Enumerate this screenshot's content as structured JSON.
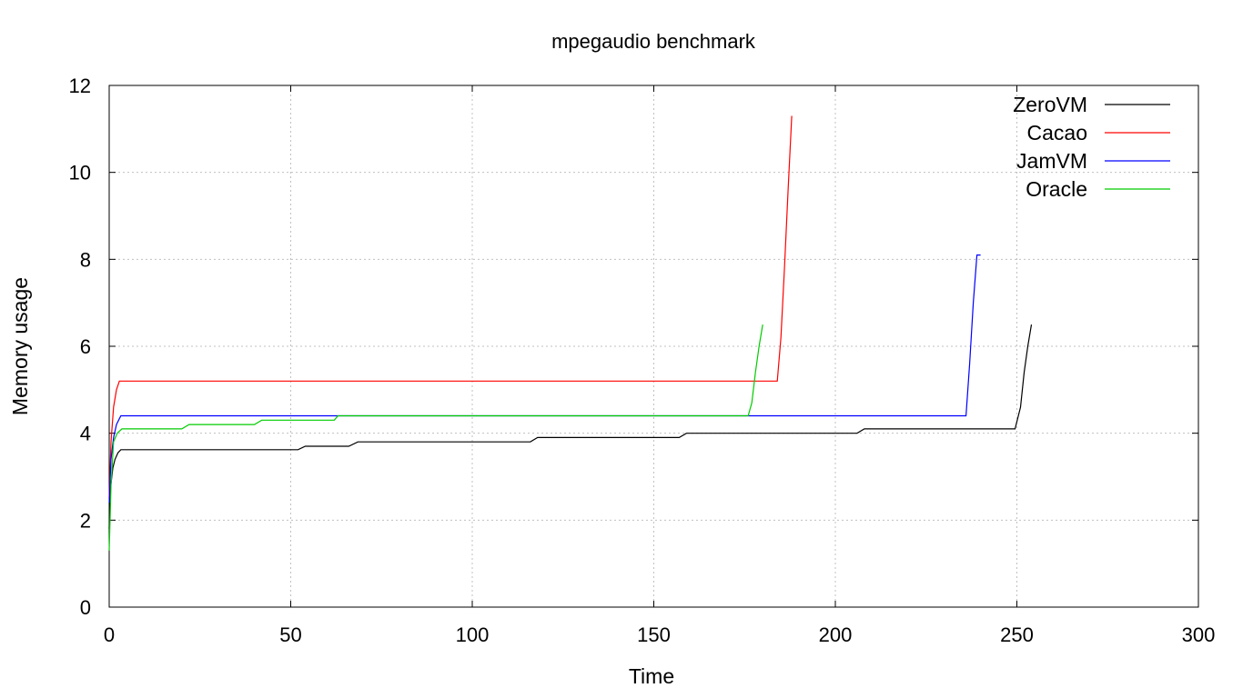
{
  "chart_data": {
    "type": "line",
    "title": "mpegaudio benchmark",
    "xlabel": "Time",
    "ylabel": "Memory usage",
    "xlim": [
      0,
      300
    ],
    "ylim": [
      0,
      12
    ],
    "xticks": [
      0,
      50,
      100,
      150,
      200,
      250,
      300
    ],
    "yticks": [
      0,
      2,
      4,
      6,
      8,
      10,
      12
    ],
    "grid": true,
    "legend_position": "top-right",
    "series": [
      {
        "name": "ZeroVM",
        "color": "#000000",
        "x": [
          0,
          0.3,
          1.0,
          1.6,
          2.4,
          3.2,
          52.0,
          54.0,
          66.0,
          68.5,
          116.0,
          118.0,
          157.0,
          159.0,
          206.0,
          208.0,
          249.5,
          251.0,
          252.0,
          253.0,
          254.0
        ],
        "y": [
          1.8,
          2.7,
          3.2,
          3.4,
          3.55,
          3.62,
          3.62,
          3.7,
          3.7,
          3.8,
          3.8,
          3.9,
          3.9,
          4.0,
          4.0,
          4.1,
          4.1,
          4.6,
          5.4,
          6.0,
          6.5
        ]
      },
      {
        "name": "Cacao",
        "color": "#ff0000",
        "x": [
          0,
          0.5,
          1.2,
          2.0,
          2.8,
          184.0,
          185.0,
          186.0,
          187.0,
          188.0
        ],
        "y": [
          2.5,
          3.8,
          4.6,
          5.0,
          5.2,
          5.2,
          6.2,
          7.8,
          9.6,
          11.3
        ]
      },
      {
        "name": "JamVM",
        "color": "#0000ff",
        "x": [
          0,
          0.5,
          1.2,
          2.0,
          3.2,
          236.0,
          237.0,
          238.0,
          239.0,
          240.0
        ],
        "y": [
          2.4,
          3.4,
          3.9,
          4.2,
          4.4,
          4.4,
          5.6,
          7.0,
          8.1,
          8.1
        ]
      },
      {
        "name": "Oracle",
        "color": "#00cc00",
        "x": [
          0,
          0.5,
          1.2,
          2.2,
          3.5,
          20.0,
          22.0,
          40.0,
          42.0,
          62.0,
          63.0,
          176.0,
          177.0,
          178.0,
          179.0,
          180.0
        ],
        "y": [
          1.3,
          2.8,
          3.8,
          4.0,
          4.1,
          4.1,
          4.2,
          4.2,
          4.3,
          4.3,
          4.4,
          4.4,
          4.7,
          5.4,
          6.0,
          6.5
        ]
      }
    ]
  }
}
